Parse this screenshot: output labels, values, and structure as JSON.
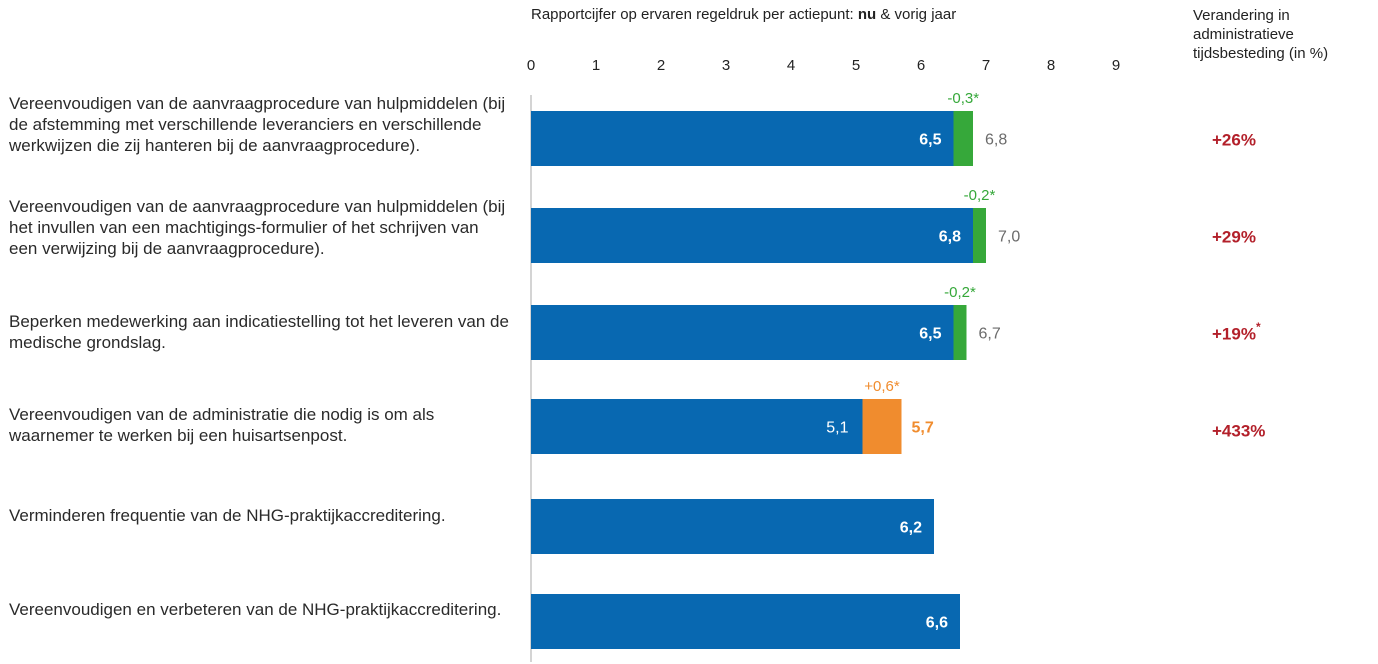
{
  "header": {
    "title_prefix": "Rapportcijfer op ervaren regeldruk per actiepunt: ",
    "title_bold": "nu",
    "title_suffix": " & vorig jaar",
    "change_column_title": "Verandering in administratieve tijdsbesteding (in %)"
  },
  "colors": {
    "current": "#0868b1",
    "decrease": "#36a83a",
    "increase": "#f08c2e",
    "change_text": "#b3202a",
    "previous_text": "#6b6b6b"
  },
  "chart_data": {
    "type": "bar",
    "orientation": "horizontal",
    "xlim": [
      0,
      9
    ],
    "ticks": [
      "0",
      "1",
      "2",
      "3",
      "4",
      "5",
      "6",
      "7",
      "8",
      "9"
    ],
    "title": "Rapportcijfer op ervaren regeldruk per actiepunt: nu & vorig jaar",
    "categories": [
      "Vereenvoudigen van de aanvraagprocedure van hulpmiddelen (bij de afstemming met verschillende leveranciers en verschillende werkwijzen die zij hanteren bij de aanvraagprocedure).",
      "Vereenvoudigen van de aanvraagprocedure van hulpmiddelen (bij het invullen van een machtigings-formulier of het schrijven van een verwijzing bij de aanvraagprocedure).",
      "Beperken medewerking aan indicatiestelling tot het leveren van de medische grondslag.",
      "Vereenvoudigen van de administratie die nodig is om als waarnemer te werken bij een huisartsenpost.",
      "Verminderen frequentie van de NHG-praktijkaccreditering.",
      "Vereenvoudigen en verbeteren van de NHG-praktijkaccreditering."
    ],
    "rows": [
      {
        "now": 6.5,
        "prev": 6.8,
        "now_label": "6,5",
        "prev_label": "6,8",
        "diff_label": "-0,3*",
        "direction": "decrease",
        "change": "+26%",
        "change_star": ""
      },
      {
        "now": 6.8,
        "prev": 7.0,
        "now_label": "6,8",
        "prev_label": "7,0",
        "diff_label": "-0,2*",
        "direction": "decrease",
        "change": "+29%",
        "change_star": ""
      },
      {
        "now": 6.5,
        "prev": 6.7,
        "now_label": "6,5",
        "prev_label": "6,7",
        "diff_label": "-0,2*",
        "direction": "decrease",
        "change": "+19%",
        "change_star": "*"
      },
      {
        "now": 5.7,
        "prev": 5.1,
        "now_label": "5,7",
        "prev_label": "5,1",
        "diff_label": "+0,6*",
        "direction": "increase",
        "change": "+433%",
        "change_star": ""
      },
      {
        "now": 6.2,
        "prev": null,
        "now_label": "6,2",
        "prev_label": "",
        "diff_label": "",
        "direction": "none",
        "change": "",
        "change_star": ""
      },
      {
        "now": 6.6,
        "prev": null,
        "now_label": "6,6",
        "prev_label": "",
        "diff_label": "",
        "direction": "none",
        "change": "",
        "change_star": ""
      }
    ]
  }
}
